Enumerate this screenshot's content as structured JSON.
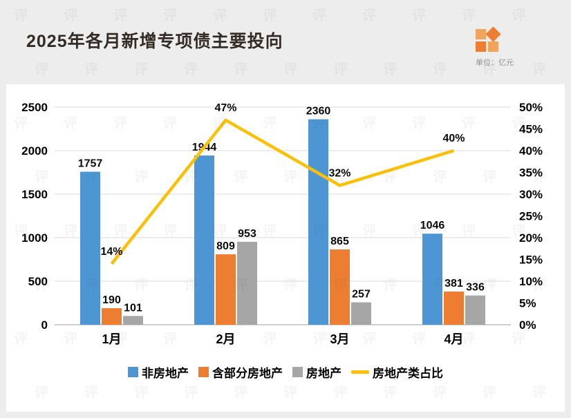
{
  "header": {
    "title": "2025年各月新增专项债主要投向",
    "unit_label": "单位：亿元"
  },
  "watermark": {
    "char": "评"
  },
  "chart_data": {
    "type": "bar",
    "subtype": "grouped-bars-with-percentage-line",
    "title": "2025年各月新增专项债主要投向",
    "categories": [
      "1月",
      "2月",
      "3月",
      "4月"
    ],
    "series": [
      {
        "name": "非房地产",
        "type": "bar",
        "color": "#4d96d3",
        "values": [
          1757,
          1944,
          2360,
          1046
        ]
      },
      {
        "name": "含部分房地产",
        "type": "bar",
        "color": "#ed7d31",
        "values": [
          190,
          809,
          865,
          381
        ]
      },
      {
        "name": "房地产",
        "type": "bar",
        "color": "#a6a6a6",
        "values": [
          101,
          953,
          257,
          336
        ]
      },
      {
        "name": "房地产类占比",
        "type": "line",
        "color": "#fdc008",
        "values": [
          14,
          47,
          32,
          40
        ],
        "labels": [
          "14%",
          "47%",
          "32%",
          "40%"
        ]
      }
    ],
    "left_axis": {
      "min": 0,
      "max": 2500,
      "ticks": [
        "0",
        "500",
        "1000",
        "1500",
        "2000",
        "2500"
      ]
    },
    "right_axis": {
      "min": 0,
      "max": 50,
      "ticks": [
        "0%",
        "5%",
        "10%",
        "15%",
        "20%",
        "25%",
        "30%",
        "35%",
        "40%",
        "45%",
        "50%"
      ]
    },
    "grid": true,
    "legend_position": "bottom"
  }
}
